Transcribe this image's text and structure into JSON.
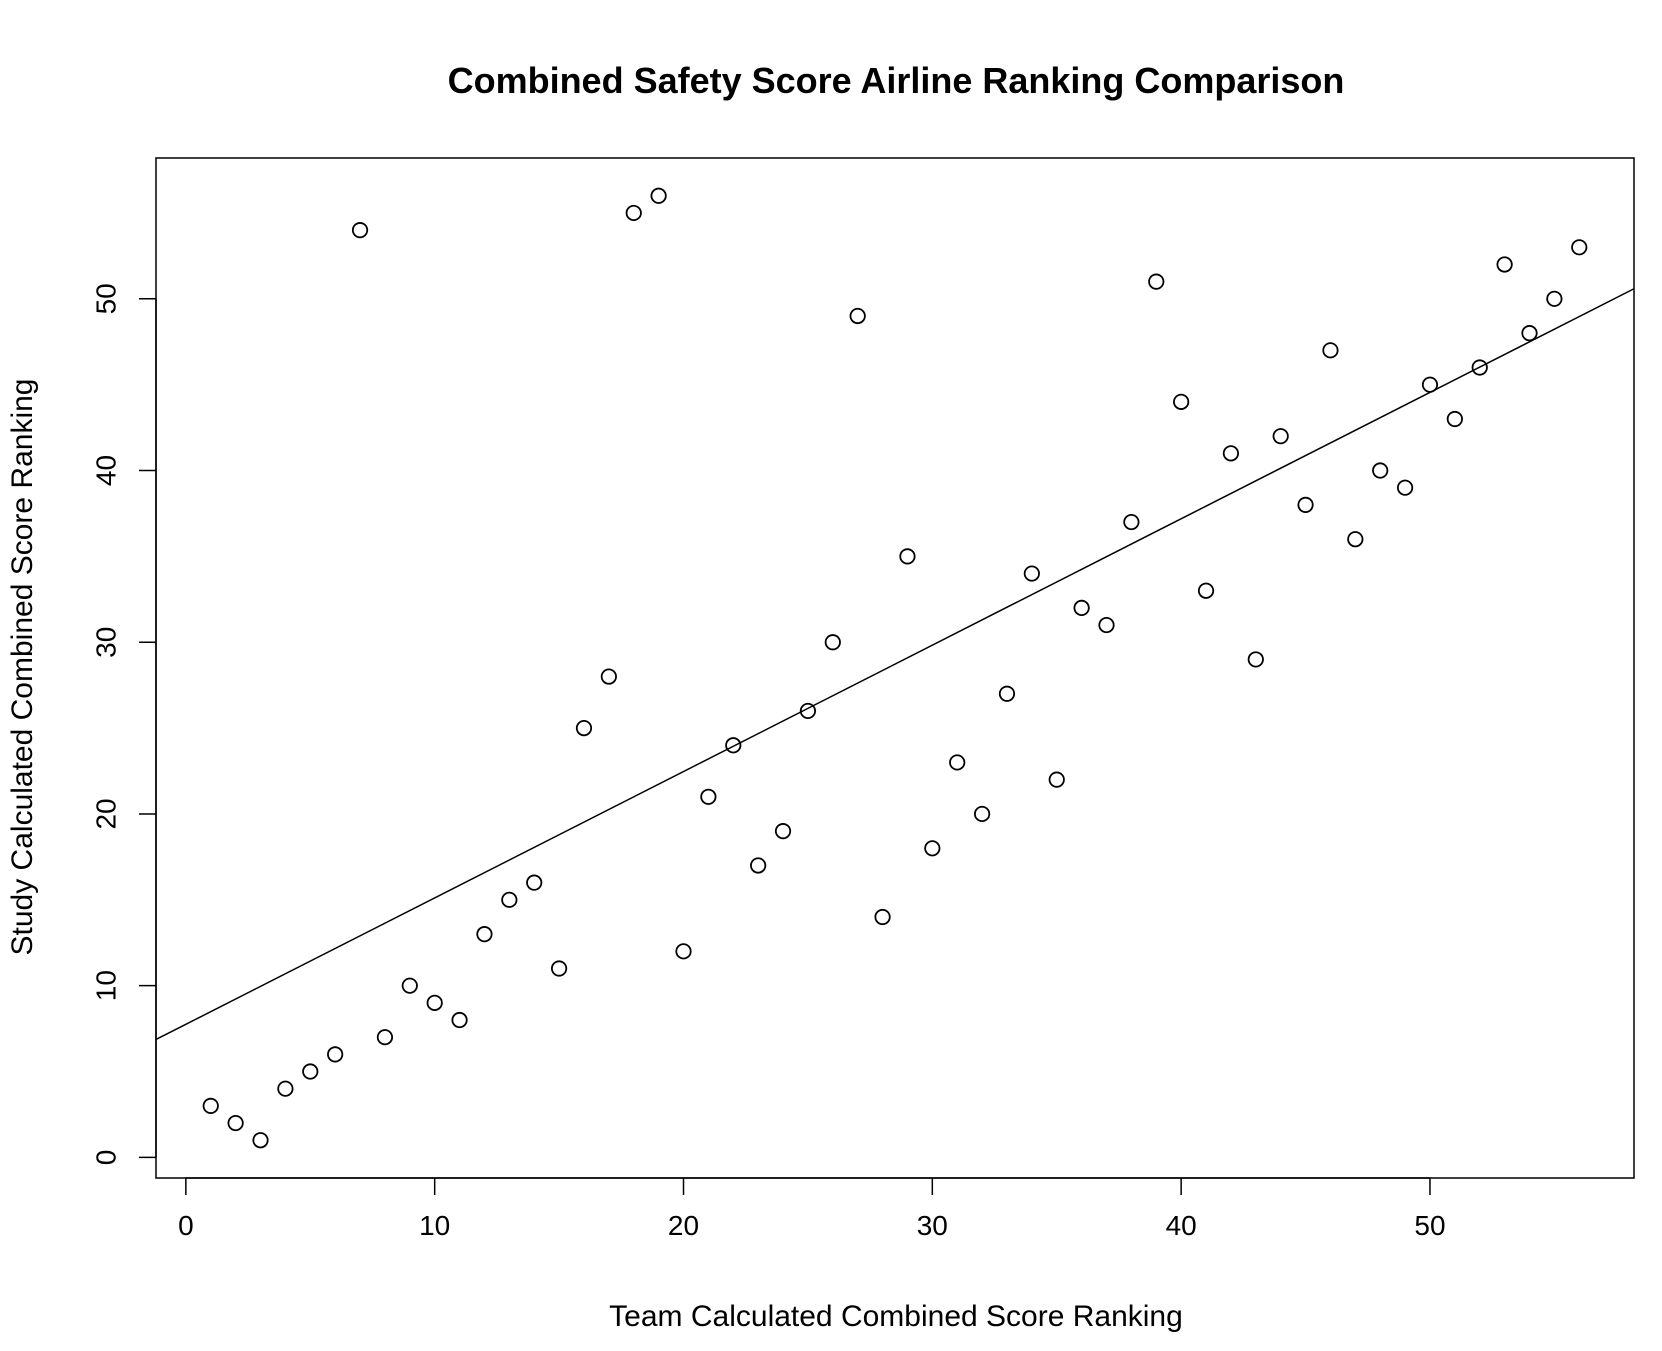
{
  "chart_data": {
    "type": "scatter",
    "title": "Combined Safety Score Airline Ranking Comparison",
    "xlabel": "Team Calculated Combined Score Ranking",
    "ylabel": "Study Calculated Combined Score Ranking",
    "xlim": [
      -1.2,
      58.2
    ],
    "ylim": [
      -1.2,
      58.2
    ],
    "x_ticks": [
      0,
      10,
      20,
      30,
      40,
      50
    ],
    "y_ticks": [
      0,
      10,
      20,
      30,
      40,
      50
    ],
    "grid": false,
    "legend": "none",
    "point_style": "open-circle",
    "colors": {
      "points": "#000000",
      "line": "#000000",
      "frame": "#000000",
      "background": "#ffffff"
    },
    "series": [
      {
        "points": [
          [
            1,
            3
          ],
          [
            2,
            2
          ],
          [
            3,
            1
          ],
          [
            4,
            4
          ],
          [
            5,
            5
          ],
          [
            6,
            6
          ],
          [
            7,
            54
          ],
          [
            8,
            7
          ],
          [
            9,
            10
          ],
          [
            10,
            9
          ],
          [
            11,
            8
          ],
          [
            12,
            13
          ],
          [
            13,
            15
          ],
          [
            14,
            16
          ],
          [
            15,
            11
          ],
          [
            16,
            25
          ],
          [
            17,
            28
          ],
          [
            18,
            55
          ],
          [
            19,
            56
          ],
          [
            20,
            12
          ],
          [
            21,
            21
          ],
          [
            22,
            24
          ],
          [
            23,
            17
          ],
          [
            24,
            19
          ],
          [
            25,
            26
          ],
          [
            26,
            30
          ],
          [
            27,
            49
          ],
          [
            28,
            14
          ],
          [
            29,
            35
          ],
          [
            30,
            18
          ],
          [
            31,
            23
          ],
          [
            32,
            20
          ],
          [
            33,
            27
          ],
          [
            34,
            34
          ],
          [
            35,
            22
          ],
          [
            36,
            32
          ],
          [
            37,
            31
          ],
          [
            38,
            37
          ],
          [
            39,
            51
          ],
          [
            40,
            44
          ],
          [
            41,
            33
          ],
          [
            42,
            41
          ],
          [
            43,
            29
          ],
          [
            44,
            42
          ],
          [
            45,
            38
          ],
          [
            46,
            47
          ],
          [
            47,
            36
          ],
          [
            48,
            40
          ],
          [
            49,
            39
          ],
          [
            50,
            45
          ],
          [
            51,
            43
          ],
          [
            52,
            46
          ],
          [
            53,
            52
          ],
          [
            54,
            48
          ],
          [
            55,
            50
          ],
          [
            56,
            53
          ]
        ]
      }
    ],
    "fit_line": {
      "intercept": 7.75,
      "slope": 0.736
    }
  }
}
